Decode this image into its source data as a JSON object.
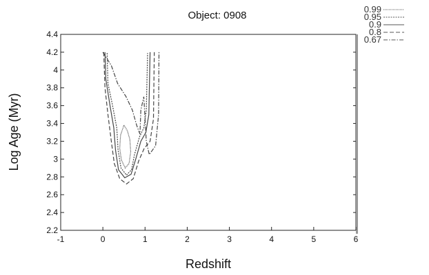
{
  "chart_data": {
    "type": "contour",
    "title": "Object: 0908",
    "xlabel": "Redshift",
    "ylabel": "Log Age (Myr)",
    "xlim": [
      -1,
      6
    ],
    "ylim": [
      2.2,
      4.4
    ],
    "xticks": [
      -1,
      0,
      1,
      2,
      3,
      4,
      5,
      6
    ],
    "yticks": [
      2.2,
      2.4,
      2.6,
      2.8,
      3,
      3.2,
      3.4,
      3.6,
      3.8,
      4,
      4.2,
      4.4
    ],
    "grid": false,
    "legend_position": "top-right outside",
    "series": [
      {
        "name": "0.99",
        "dash": "1,1",
        "points": [
          [
            0.5,
            3.38
          ],
          [
            0.42,
            3.27
          ],
          [
            0.4,
            3.12
          ],
          [
            0.44,
            2.99
          ],
          [
            0.53,
            2.9
          ],
          [
            0.62,
            2.95
          ],
          [
            0.66,
            3.08
          ],
          [
            0.64,
            3.22
          ],
          [
            0.58,
            3.32
          ],
          [
            0.5,
            3.38
          ]
        ]
      },
      {
        "name": "0.95",
        "dash": "2,1.5",
        "points": [
          [
            0.1,
            4.19
          ],
          [
            0.12,
            3.85
          ],
          [
            0.23,
            3.6
          ],
          [
            0.33,
            3.35
          ],
          [
            0.36,
            3.1
          ],
          [
            0.43,
            2.9
          ],
          [
            0.56,
            2.82
          ],
          [
            0.68,
            2.88
          ],
          [
            0.75,
            3.05
          ],
          [
            0.87,
            3.25
          ],
          [
            0.97,
            3.35
          ],
          [
            1.03,
            3.55
          ],
          [
            1.06,
            4.19
          ]
        ]
      },
      {
        "name": "0.9",
        "dash": "",
        "points": [
          [
            0.05,
            4.2
          ],
          [
            0.07,
            3.9
          ],
          [
            0.17,
            3.6
          ],
          [
            0.26,
            3.35
          ],
          [
            0.3,
            3.1
          ],
          [
            0.37,
            2.88
          ],
          [
            0.52,
            2.79
          ],
          [
            0.67,
            2.83
          ],
          [
            0.78,
            3.0
          ],
          [
            0.9,
            3.2
          ],
          [
            1.02,
            3.3
          ],
          [
            1.09,
            3.5
          ],
          [
            1.12,
            4.2
          ]
        ]
      },
      {
        "name": "0.8",
        "dash": "6,3",
        "points": [
          [
            0.02,
            4.2
          ],
          [
            0.05,
            3.8
          ],
          [
            0.12,
            3.5
          ],
          [
            0.2,
            3.2
          ],
          [
            0.27,
            2.95
          ],
          [
            0.4,
            2.78
          ],
          [
            0.56,
            2.72
          ],
          [
            0.72,
            2.78
          ],
          [
            0.85,
            2.98
          ],
          [
            0.98,
            3.12
          ],
          [
            1.12,
            3.2
          ],
          [
            1.2,
            3.45
          ],
          [
            1.22,
            4.2
          ]
        ]
      },
      {
        "name": "0.67",
        "dash": "6,2,1.5,2",
        "points": [
          [
            0.0,
            4.2
          ],
          [
            0.2,
            4.05
          ],
          [
            0.35,
            3.85
          ],
          [
            0.55,
            3.7
          ],
          [
            0.7,
            3.55
          ],
          [
            0.8,
            3.38
          ],
          [
            0.88,
            3.28
          ],
          [
            0.9,
            3.55
          ],
          [
            0.97,
            3.7
          ],
          [
            1.0,
            3.45
          ],
          [
            1.03,
            3.2
          ],
          [
            1.1,
            3.05
          ],
          [
            1.25,
            3.15
          ],
          [
            1.32,
            3.5
          ],
          [
            1.33,
            4.2
          ]
        ]
      }
    ]
  }
}
